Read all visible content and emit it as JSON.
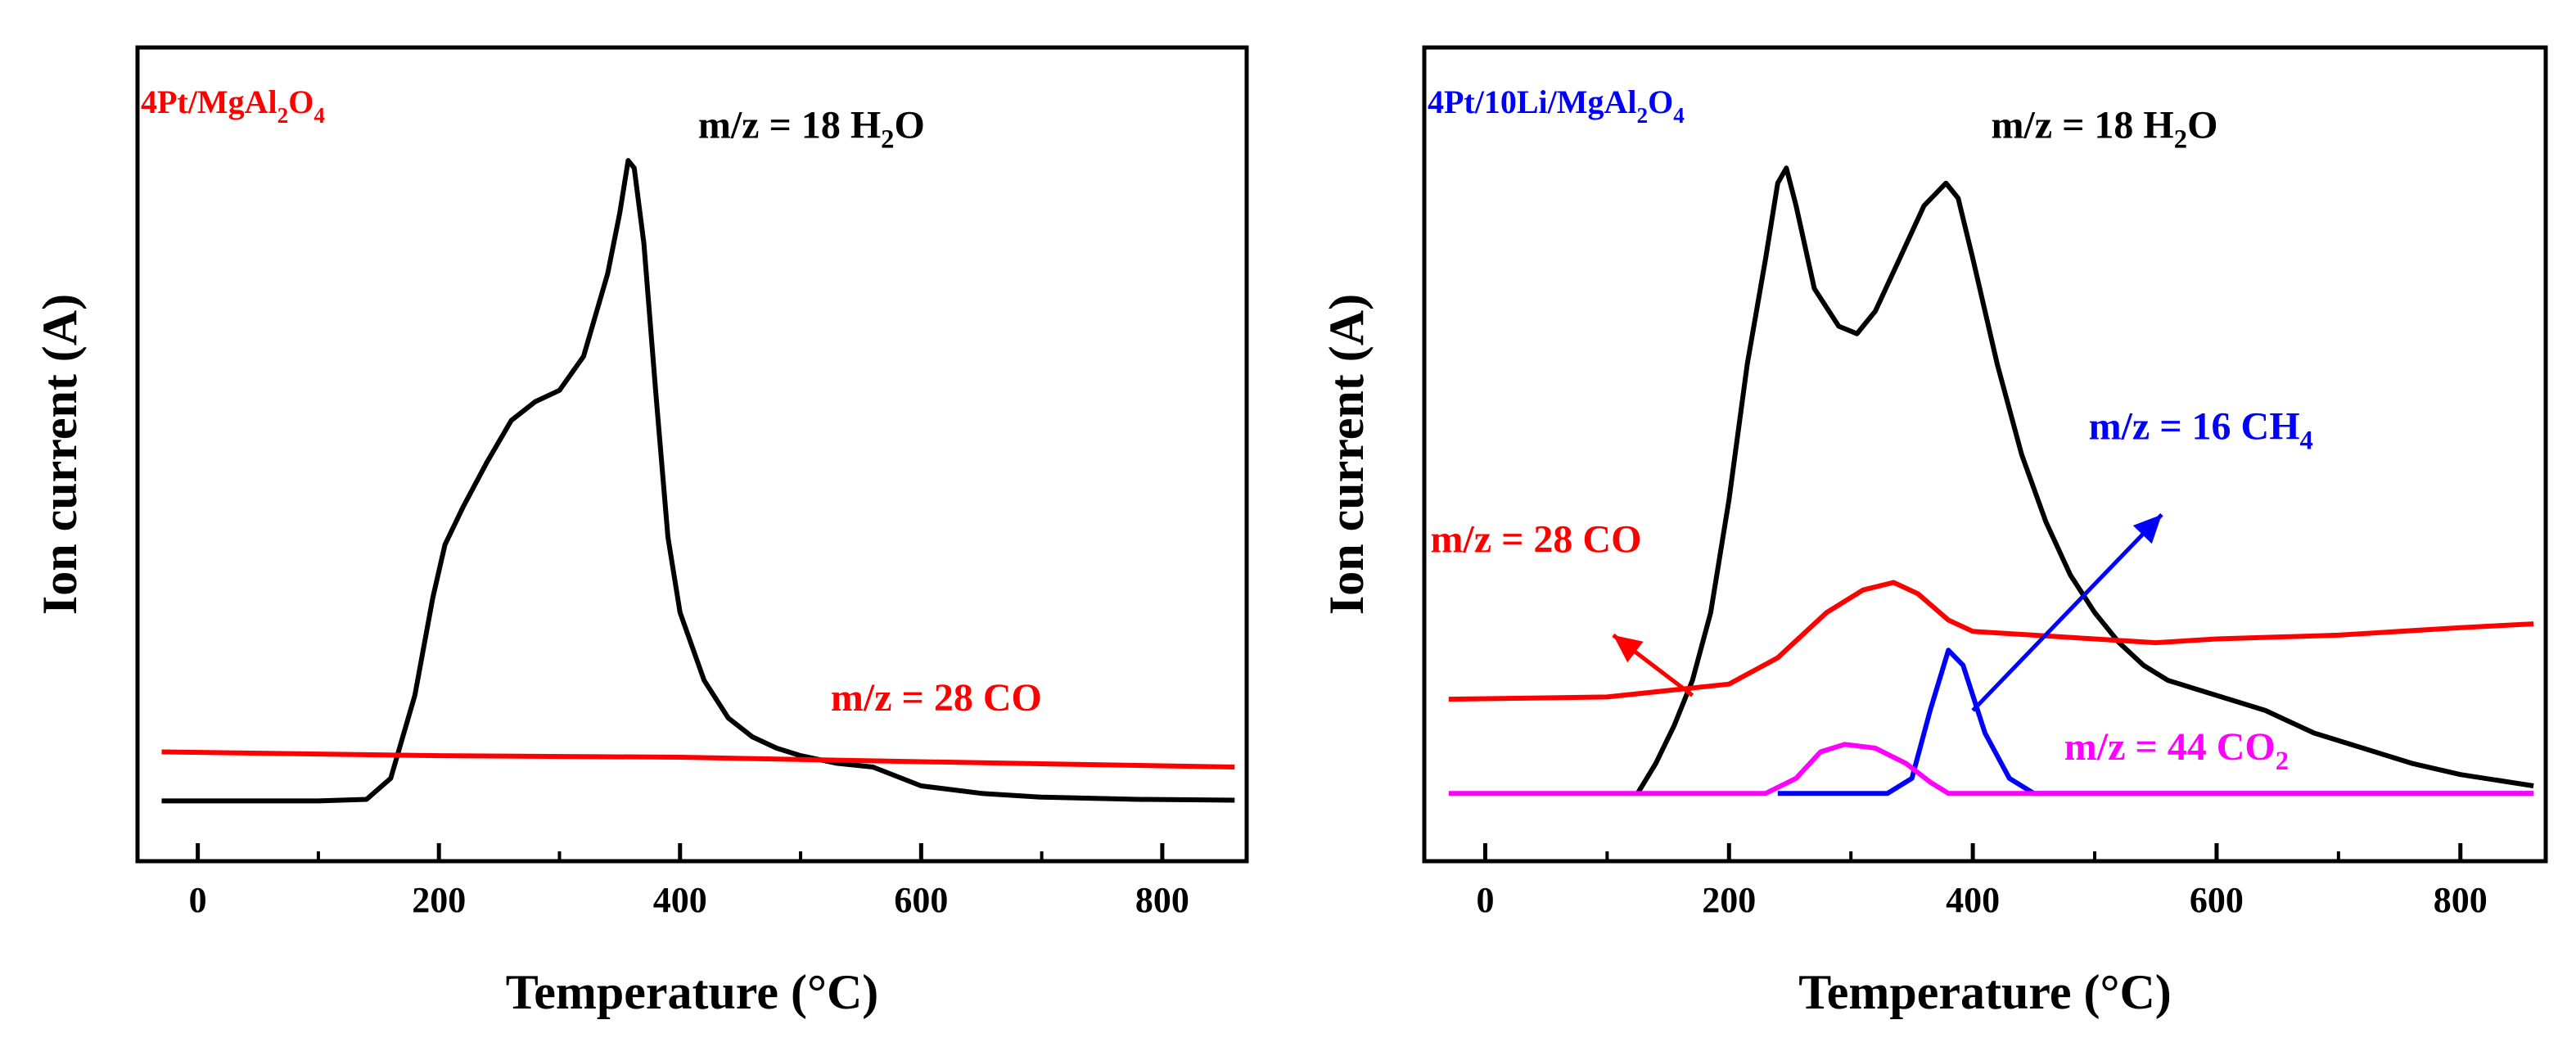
{
  "chart_data": [
    {
      "type": "line",
      "title": "4Pt/MgAl2O4",
      "title_parts": [
        {
          "t": "4Pt/MgAl"
        },
        {
          "t": "2",
          "sub": true
        },
        {
          "t": "O"
        },
        {
          "t": "4",
          "sub": true
        }
      ],
      "title_color": "#ff0000",
      "xlabel": "Temperature (°C)",
      "ylabel": "Ion current (A)",
      "xlim": [
        -50,
        870
      ],
      "ylim": [
        0,
        1.08
      ],
      "xticks": [
        0,
        200,
        400,
        600,
        800
      ],
      "xtick_labels": [
        "0",
        "200",
        "400",
        "600",
        "800"
      ],
      "series": [
        {
          "name": "m/z = 18 H2O",
          "color": "#000000",
          "label_parts": [
            {
              "t": "m/z = 18 H"
            },
            {
              "t": "2",
              "sub": true
            },
            {
              "t": "O"
            }
          ],
          "label_anchor": [
            415,
            0.96
          ],
          "label_color": "#000000",
          "points": [
            [
              -30,
              0.08
            ],
            [
              100,
              0.08
            ],
            [
              140,
              0.082
            ],
            [
              160,
              0.11
            ],
            [
              180,
              0.22
            ],
            [
              195,
              0.35
            ],
            [
              205,
              0.42
            ],
            [
              220,
              0.47
            ],
            [
              240,
              0.53
            ],
            [
              260,
              0.585
            ],
            [
              280,
              0.61
            ],
            [
              300,
              0.625
            ],
            [
              320,
              0.67
            ],
            [
              340,
              0.78
            ],
            [
              350,
              0.86
            ],
            [
              357,
              0.93
            ],
            [
              362,
              0.92
            ],
            [
              370,
              0.82
            ],
            [
              380,
              0.62
            ],
            [
              390,
              0.43
            ],
            [
              400,
              0.33
            ],
            [
              420,
              0.24
            ],
            [
              440,
              0.19
            ],
            [
              460,
              0.165
            ],
            [
              480,
              0.15
            ],
            [
              500,
              0.14
            ],
            [
              530,
              0.13
            ],
            [
              560,
              0.125
            ],
            [
              600,
              0.1
            ],
            [
              650,
              0.09
            ],
            [
              700,
              0.085
            ],
            [
              780,
              0.082
            ],
            [
              860,
              0.081
            ]
          ]
        },
        {
          "name": "m/z = 28 CO",
          "color": "#ff0000",
          "label_parts": [
            {
              "t": "m/z = 28 CO"
            }
          ],
          "label_anchor": [
            525,
            0.2
          ],
          "label_color": "#ff0000",
          "points": [
            [
              -30,
              0.145
            ],
            [
              200,
              0.14
            ],
            [
              400,
              0.138
            ],
            [
              600,
              0.132
            ],
            [
              860,
              0.125
            ]
          ]
        }
      ]
    },
    {
      "type": "line",
      "title": "4Pt/10Li/MgAl2O4",
      "title_parts": [
        {
          "t": "4Pt/10Li/MgAl"
        },
        {
          "t": "2",
          "sub": true
        },
        {
          "t": "O"
        },
        {
          "t": "4",
          "sub": true
        }
      ],
      "title_color": "#0000ff",
      "xlabel": "Temperature (°C)",
      "ylabel": "Ion current (A)",
      "xlim": [
        -50,
        870
      ],
      "ylim": [
        0,
        1.08
      ],
      "xticks": [
        0,
        200,
        400,
        600,
        800
      ],
      "xtick_labels": [
        "0",
        "200",
        "400",
        "600",
        "800"
      ],
      "series": [
        {
          "name": "m/z = 18 H2O",
          "color": "#000000",
          "label_parts": [
            {
              "t": "m/z = 18 H"
            },
            {
              "t": "2",
              "sub": true
            },
            {
              "t": "O"
            }
          ],
          "label_anchor": [
            415,
            0.96
          ],
          "label_color": "#000000",
          "points": [
            [
              125,
              0.09
            ],
            [
              140,
              0.13
            ],
            [
              155,
              0.18
            ],
            [
              170,
              0.24
            ],
            [
              185,
              0.33
            ],
            [
              200,
              0.48
            ],
            [
              215,
              0.66
            ],
            [
              230,
              0.8
            ],
            [
              240,
              0.9
            ],
            [
              247,
              0.92
            ],
            [
              255,
              0.87
            ],
            [
              270,
              0.76
            ],
            [
              290,
              0.71
            ],
            [
              305,
              0.7
            ],
            [
              320,
              0.73
            ],
            [
              340,
              0.8
            ],
            [
              360,
              0.87
            ],
            [
              378,
              0.9
            ],
            [
              388,
              0.88
            ],
            [
              400,
              0.8
            ],
            [
              420,
              0.66
            ],
            [
              440,
              0.54
            ],
            [
              460,
              0.45
            ],
            [
              480,
              0.38
            ],
            [
              500,
              0.33
            ],
            [
              520,
              0.29
            ],
            [
              540,
              0.26
            ],
            [
              560,
              0.24
            ],
            [
              600,
              0.22
            ],
            [
              640,
              0.2
            ],
            [
              680,
              0.17
            ],
            [
              720,
              0.15
            ],
            [
              760,
              0.13
            ],
            [
              800,
              0.115
            ],
            [
              860,
              0.1
            ]
          ]
        },
        {
          "name": "m/z = 28 CO",
          "color": "#ff0000",
          "label_parts": [
            {
              "t": "m/z = 28 CO"
            }
          ],
          "label_anchor": [
            -45,
            0.41
          ],
          "label_color": "#ff0000",
          "points": [
            [
              -30,
              0.215
            ],
            [
              100,
              0.218
            ],
            [
              200,
              0.235
            ],
            [
              240,
              0.27
            ],
            [
              280,
              0.33
            ],
            [
              310,
              0.36
            ],
            [
              335,
              0.37
            ],
            [
              355,
              0.355
            ],
            [
              380,
              0.32
            ],
            [
              400,
              0.305
            ],
            [
              450,
              0.3
            ],
            [
              500,
              0.295
            ],
            [
              550,
              0.29
            ],
            [
              600,
              0.295
            ],
            [
              700,
              0.3
            ],
            [
              800,
              0.31
            ],
            [
              860,
              0.315
            ]
          ]
        },
        {
          "name": "m/z = 16 CH4",
          "color": "#0000ff",
          "label_parts": [
            {
              "t": "m/z = 16 CH"
            },
            {
              "t": "4",
              "sub": true
            }
          ],
          "label_anchor": [
            495,
            0.56
          ],
          "label_color": "#0000ff",
          "points": [
            [
              240,
              0.09
            ],
            [
              330,
              0.09
            ],
            [
              350,
              0.11
            ],
            [
              365,
              0.2
            ],
            [
              380,
              0.28
            ],
            [
              392,
              0.26
            ],
            [
              410,
              0.17
            ],
            [
              430,
              0.11
            ],
            [
              450,
              0.09
            ],
            [
              860,
              0.09
            ]
          ]
        },
        {
          "name": "m/z = 44 CO2",
          "color": "#ff00ff",
          "label_parts": [
            {
              "t": "m/z = 44 CO"
            },
            {
              "t": "2",
              "sub": true
            }
          ],
          "label_anchor": [
            475,
            0.135
          ],
          "label_color": "#ff00ff",
          "points": [
            [
              -30,
              0.09
            ],
            [
              230,
              0.09
            ],
            [
              255,
              0.11
            ],
            [
              275,
              0.145
            ],
            [
              295,
              0.155
            ],
            [
              320,
              0.15
            ],
            [
              345,
              0.13
            ],
            [
              365,
              0.105
            ],
            [
              380,
              0.09
            ],
            [
              860,
              0.09
            ]
          ]
        }
      ],
      "arrows": [
        {
          "name": "co-arrow",
          "color": "#ff0000",
          "from": [
            170,
            0.22
          ],
          "to": [
            105,
            0.3
          ]
        },
        {
          "name": "ch4-arrow",
          "color": "#0000ff",
          "from": [
            400,
            0.2
          ],
          "to": [
            555,
            0.46
          ]
        }
      ]
    }
  ]
}
